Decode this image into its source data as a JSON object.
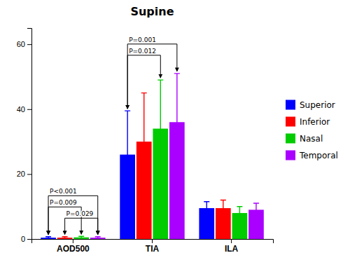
{
  "chart_data": {
    "type": "bar",
    "title": "Supine",
    "categories": [
      "AOD500",
      "TIA",
      "ILA"
    ],
    "series": [
      {
        "name": "Superior",
        "color": "#0000FF",
        "values": [
          0.4,
          26,
          9.5
        ],
        "errors": [
          0.3,
          13.5,
          2.0
        ]
      },
      {
        "name": "Inferior",
        "color": "#FF0000",
        "values": [
          0.4,
          30,
          9.5
        ],
        "errors": [
          0.3,
          15,
          2.5
        ]
      },
      {
        "name": "Nasal",
        "color": "#00CC00",
        "values": [
          0.5,
          34,
          8.0
        ],
        "errors": [
          0.3,
          15,
          2.0
        ]
      },
      {
        "name": "Temporal",
        "color": "#AA00FF",
        "values": [
          0.4,
          36,
          9.0
        ],
        "errors": [
          0.3,
          15,
          2.0
        ]
      }
    ],
    "ylim": [
      0,
      65
    ],
    "yticks": [
      0,
      20,
      40,
      60
    ],
    "grid": false,
    "legend": "right",
    "annotations": [
      {
        "text": "P<0.001",
        "category": "AOD500",
        "series": [
          "Superior",
          "Temporal"
        ]
      },
      {
        "text": "P=0.009",
        "category": "AOD500",
        "series": [
          "Superior",
          "Nasal"
        ]
      },
      {
        "text": "P=0.029",
        "category": "AOD500",
        "series": [
          "Inferior",
          "Temporal"
        ]
      },
      {
        "text": "P=0.001",
        "category": "TIA",
        "series": [
          "Superior",
          "Temporal"
        ]
      },
      {
        "text": "P=0.012",
        "category": "TIA",
        "series": [
          "Superior",
          "Nasal"
        ]
      }
    ]
  }
}
